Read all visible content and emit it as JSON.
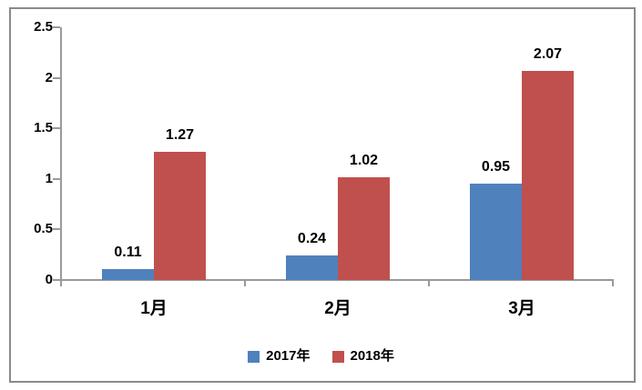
{
  "chart_data": {
    "type": "bar",
    "categories": [
      "1月",
      "2月",
      "3月"
    ],
    "series": [
      {
        "name": "2017年",
        "color": "#4F81BD",
        "values": [
          0.11,
          0.24,
          0.95
        ]
      },
      {
        "name": "2018年",
        "color": "#C0504D",
        "values": [
          1.27,
          1.02,
          2.07
        ]
      }
    ],
    "data_labels": [
      "0.11",
      "0.24",
      "0.95",
      "1.27",
      "1.02",
      "2.07"
    ],
    "title": "",
    "xlabel": "",
    "ylabel": "",
    "ylim": [
      0,
      2.5
    ],
    "ytick_step": 0.5,
    "yticks": [
      "0",
      "0.5",
      "1",
      "1.5",
      "2",
      "2.5"
    ],
    "grid": false,
    "legend_position": "bottom"
  },
  "colors": {
    "axis_line": "#9a9a9a",
    "frame_border": "#8a8a8a",
    "text": "#000000",
    "background": "#ffffff"
  }
}
